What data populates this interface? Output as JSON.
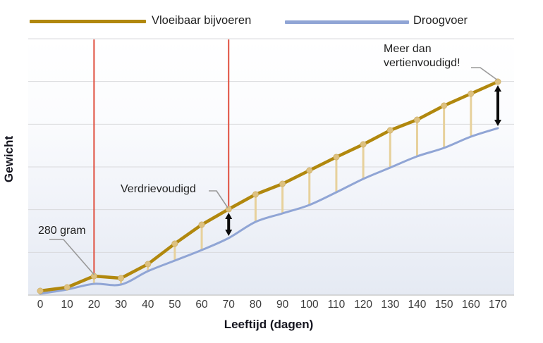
{
  "legend": {
    "items": [
      {
        "label": "Vloeibaar bijvoeren",
        "color": "#b1880e"
      },
      {
        "label": "Droogvoer",
        "color": "#90a5d5"
      }
    ]
  },
  "axes": {
    "x_label": "Leeftijd (dagen)",
    "y_label": "Gewicht",
    "x_ticks": [
      "0",
      "10",
      "20",
      "30",
      "40",
      "50",
      "60",
      "70",
      "80",
      "90",
      "100",
      "110",
      "120",
      "130",
      "140",
      "150",
      "160",
      "170"
    ]
  },
  "annotations": [
    {
      "text": "280 gram",
      "day": 20,
      "series": "Vloeibaar bijvoeren"
    },
    {
      "text": "Verdrievoudigd",
      "day": 70,
      "series": "Vloeibaar bijvoeren"
    },
    {
      "text": "Meer dan vertienvoudigd!",
      "day": 170,
      "series": "Vloeibaar bijvoeren"
    }
  ],
  "colors": {
    "gold_line": "#b1880e",
    "blue_line": "#90a5d5",
    "connector": "#e7d19c",
    "dot_fill": "#ddc180",
    "dot_edge": "#c9a95e",
    "red_marker": "#e04f3f",
    "grid": "#d9dadc",
    "axis_line": "#c2c2c2",
    "leader": "#999999",
    "arrow": "#0a0a0a",
    "tick_text": "#3a3a3a"
  },
  "chart_data": {
    "type": "line",
    "title": "",
    "xlabel": "Leeftijd (dagen)",
    "ylabel": "Gewicht",
    "x": [
      0,
      10,
      20,
      30,
      40,
      50,
      60,
      70,
      80,
      90,
      100,
      110,
      120,
      130,
      140,
      150,
      160,
      170
    ],
    "series": [
      {
        "name": "Vloeibaar bijvoeren",
        "color": "#b1880e",
        "values": [
          7,
          12,
          28,
          25,
          45,
          74,
          101,
          123,
          144,
          159,
          178,
          197,
          215,
          235,
          250,
          270,
          287,
          304
        ]
      },
      {
        "name": "Droogvoer",
        "color": "#90a5d5",
        "values": [
          3,
          9,
          17,
          16,
          35,
          50,
          65,
          82,
          105,
          117,
          129,
          147,
          166,
          182,
          198,
          210,
          226,
          238
        ]
      }
    ],
    "values_unit": "relative (y-axis has no numeric scale)",
    "ylim": [
      0,
      320
    ],
    "grid": "horizontal",
    "legend_position": "top",
    "red_marker_days": [
      20,
      70
    ],
    "difference_arrow_days": [
      70,
      170
    ],
    "connector_days": [
      20,
      30,
      40,
      50,
      60,
      80,
      90,
      100,
      110,
      120,
      130,
      140,
      150,
      160
    ],
    "annotations": [
      {
        "text": "280 gram",
        "day": 20
      },
      {
        "text": "Verdrievoudigd",
        "day": 70
      },
      {
        "text": "Meer dan vertienvoudigd!",
        "day": 170
      }
    ]
  }
}
